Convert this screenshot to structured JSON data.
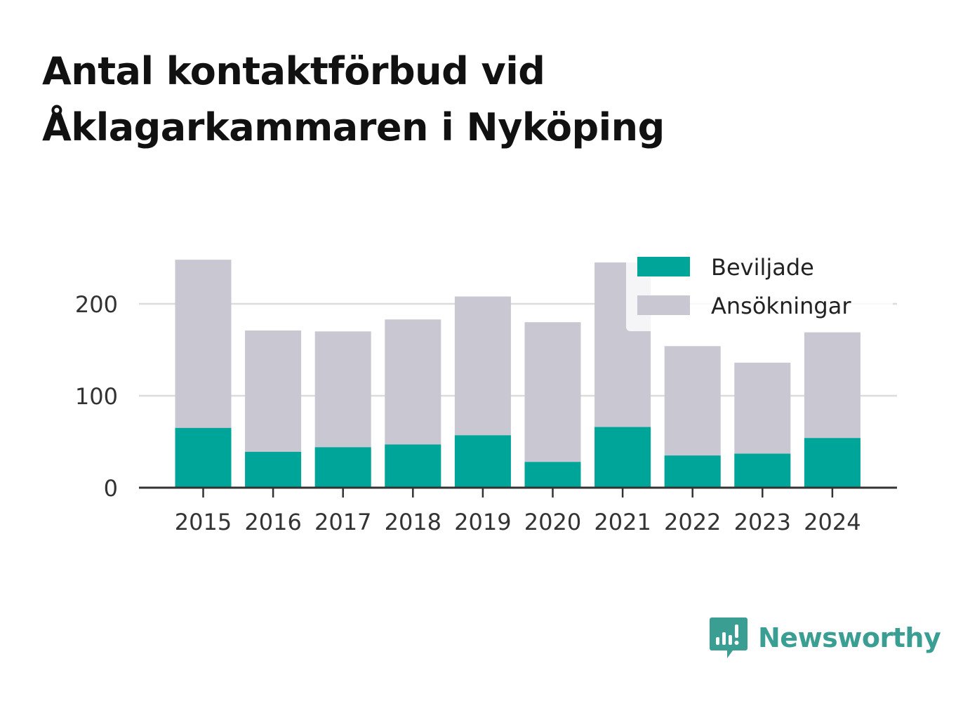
{
  "title": {
    "line1": "Antal kontaktförbud vid",
    "line2": "Åklagarkammaren i Nyköping"
  },
  "chart_data": {
    "type": "bar",
    "stacked": false,
    "categories": [
      "2015",
      "2016",
      "2017",
      "2018",
      "2019",
      "2020",
      "2021",
      "2022",
      "2023",
      "2024"
    ],
    "series": [
      {
        "name": "Ansökningar",
        "color": "#c8c7d2",
        "values": [
          248,
          171,
          170,
          183,
          208,
          180,
          245,
          154,
          136,
          169
        ]
      },
      {
        "name": "Beviljade",
        "color": "#00a59a",
        "values": [
          65,
          39,
          44,
          47,
          57,
          28,
          66,
          35,
          37,
          54
        ]
      }
    ],
    "y_ticks": [
      0,
      100,
      200
    ],
    "ylim": [
      0,
      250
    ],
    "grid": true,
    "legend_position": "top-right",
    "legend": [
      "Beviljade",
      "Ansökningar"
    ]
  },
  "brand": {
    "name": "Newsworthy",
    "icon": "newsworthy-logo-icon",
    "color": "#3a9e93"
  }
}
